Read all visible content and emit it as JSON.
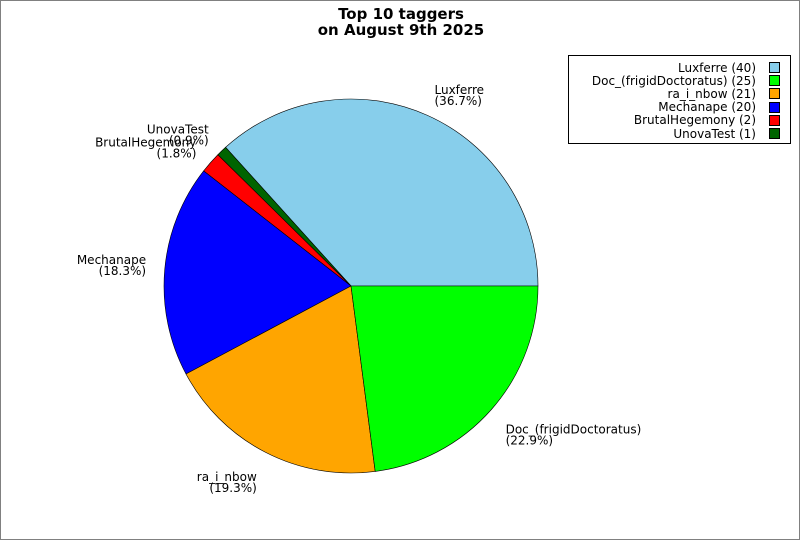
{
  "chart_data": {
    "type": "pie",
    "title_lines": [
      "Top 10 taggers",
      "on August 9th 2025"
    ],
    "slices": [
      {
        "label": "Luxferre",
        "value": 40,
        "percent": "36.7%",
        "color": "#87ceeb",
        "legend": "Luxferre (40)"
      },
      {
        "label": "UnovaTest",
        "value": 1,
        "percent": "0.9%",
        "color": "#006400",
        "legend": "UnovaTest (1)"
      },
      {
        "label": "BrutalHegemony",
        "value": 2,
        "percent": "1.8%",
        "color": "#ff0000",
        "legend": "BrutalHegemony (2)"
      },
      {
        "label": "Mechanape",
        "value": 20,
        "percent": "18.3%",
        "color": "#0000ff",
        "legend": "Mechanape (20)"
      },
      {
        "label": "ra_i_nbow",
        "value": 21,
        "percent": "19.3%",
        "color": "#ffa500",
        "legend": "ra_i_nbow (21)"
      },
      {
        "label": "Doc_(frigidDoctoratus)",
        "value": 25,
        "percent": "22.9%",
        "color": "#00ff00",
        "legend": "Doc_(frigidDoctoratus) (25)"
      }
    ],
    "legend_order": [
      0,
      5,
      4,
      3,
      2,
      1
    ],
    "legend_placement": "top-right"
  }
}
